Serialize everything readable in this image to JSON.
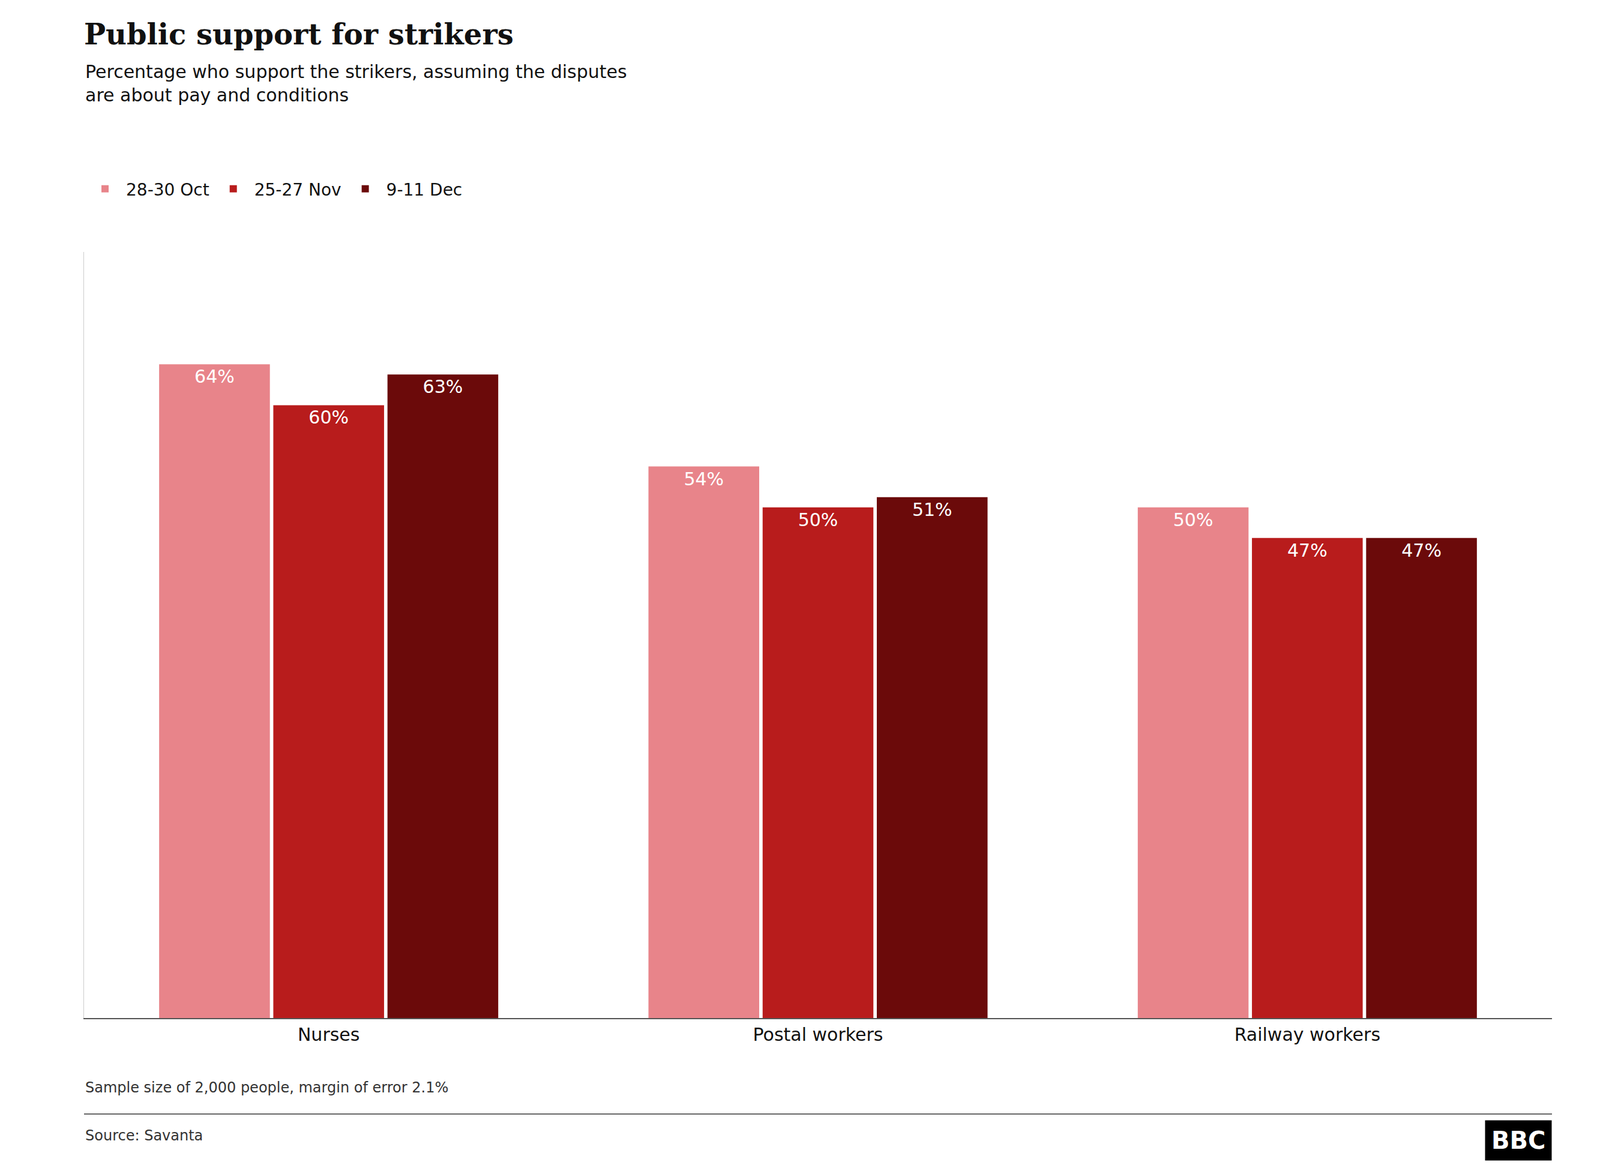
{
  "chart_data": {
    "type": "bar",
    "title": "Public support for strikers",
    "subtitle": "Percentage who support the strikers, assuming the disputes\nare about pay and conditions",
    "categories": [
      "Nurses",
      "Postal workers",
      "Railway workers"
    ],
    "series": [
      {
        "name": "28-30 Oct",
        "color": "#E8848A",
        "values": [
          64,
          54,
          50
        ],
        "value_labels": [
          "64%",
          "54%",
          "50%"
        ]
      },
      {
        "name": "25-27 Nov",
        "color": "#B81C1C",
        "values": [
          60,
          50,
          47
        ],
        "value_labels": [
          "60%",
          "50%",
          "47%"
        ]
      },
      {
        "name": "9-11 Dec",
        "color": "#6B0A0A",
        "values": [
          63,
          51,
          47
        ],
        "value_labels": [
          "63%",
          "51%",
          "47%"
        ]
      }
    ],
    "ylim": [
      0,
      75
    ],
    "yticks": [],
    "grid": false,
    "legend": "top left",
    "data_labels": true,
    "tick_labels": "x",
    "annotations": [
      "Sample size of 2,000 people, margin of error 2.1%",
      "Source: Savanta",
      "BBC"
    ]
  }
}
